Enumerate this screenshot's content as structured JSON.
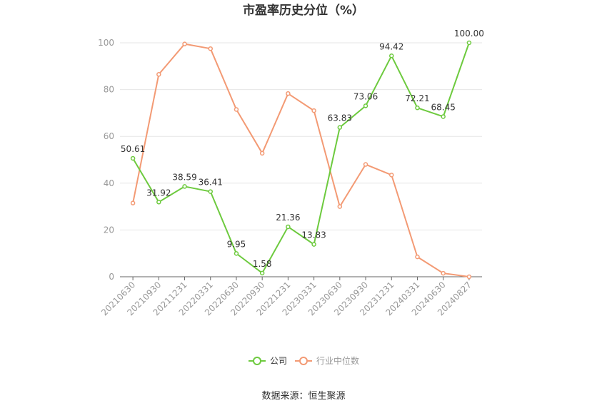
{
  "chart_data": {
    "type": "line",
    "title": "市盈率历史分位（%）",
    "source": "数据来源：恒生聚源",
    "x": [
      "20210630",
      "20210930",
      "20211231",
      "20220331",
      "20220630",
      "20220930",
      "20221231",
      "20230331",
      "20230630",
      "20230930",
      "20231231",
      "20240331",
      "20240630",
      "20240827"
    ],
    "ylim": [
      0,
      100
    ],
    "yticks": [
      "0",
      "20",
      "40",
      "60",
      "80",
      "100"
    ],
    "grid": true,
    "legend": "bottom",
    "series": [
      {
        "name": "公司",
        "color": "#6dca3e",
        "values": [
          50.61,
          31.92,
          38.59,
          36.41,
          9.95,
          1.58,
          21.36,
          13.83,
          63.83,
          73.06,
          94.42,
          72.21,
          68.45,
          100.0
        ],
        "labels": [
          "50.61",
          "31.92",
          "38.59",
          "36.41",
          "9.95",
          "1.58",
          "21.36",
          "13.83",
          "63.83",
          "73.06",
          "94.42",
          "72.21",
          "68.45",
          "100.00"
        ]
      },
      {
        "name": "行业中位数",
        "color": "#f39a74",
        "values": [
          31.5,
          86.5,
          99.5,
          97.5,
          71.5,
          52.8,
          78.3,
          71.0,
          30.0,
          48.0,
          43.5,
          8.5,
          1.5,
          0.0
        ]
      }
    ]
  }
}
